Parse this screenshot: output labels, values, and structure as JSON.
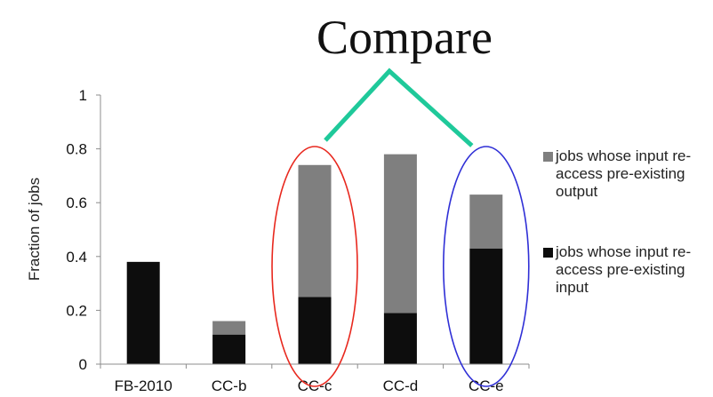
{
  "chart_data": {
    "type": "bar",
    "stacked": true,
    "title": "Compare",
    "ylabel": "Fraction of jobs",
    "xlabel": "",
    "ylim": [
      0,
      1
    ],
    "yticks": [
      "0",
      "0.2",
      "0.4",
      "0.6",
      "0.8",
      "1"
    ],
    "categories": [
      "FB-2010",
      "CC-b",
      "CC-c",
      "CC-d",
      "CC-e"
    ],
    "series": [
      {
        "name": "jobs whose input re-access pre-existing input",
        "values": [
          0.38,
          0.11,
          0.25,
          0.19,
          0.43
        ],
        "color": "#0d0d0d"
      },
      {
        "name": "jobs whose input re-access pre-existing output",
        "values": [
          0.0,
          0.05,
          0.49,
          0.59,
          0.2
        ],
        "color": "#7f7f7f"
      }
    ],
    "legend_position": "right",
    "grid": false,
    "annotations": {
      "highlight_ellipses": [
        {
          "category": "CC-c",
          "color": "#e8281e"
        },
        {
          "category": "CC-e",
          "color": "#2f2fd6"
        }
      ],
      "compare_connector_color": "#1fc99a"
    }
  }
}
